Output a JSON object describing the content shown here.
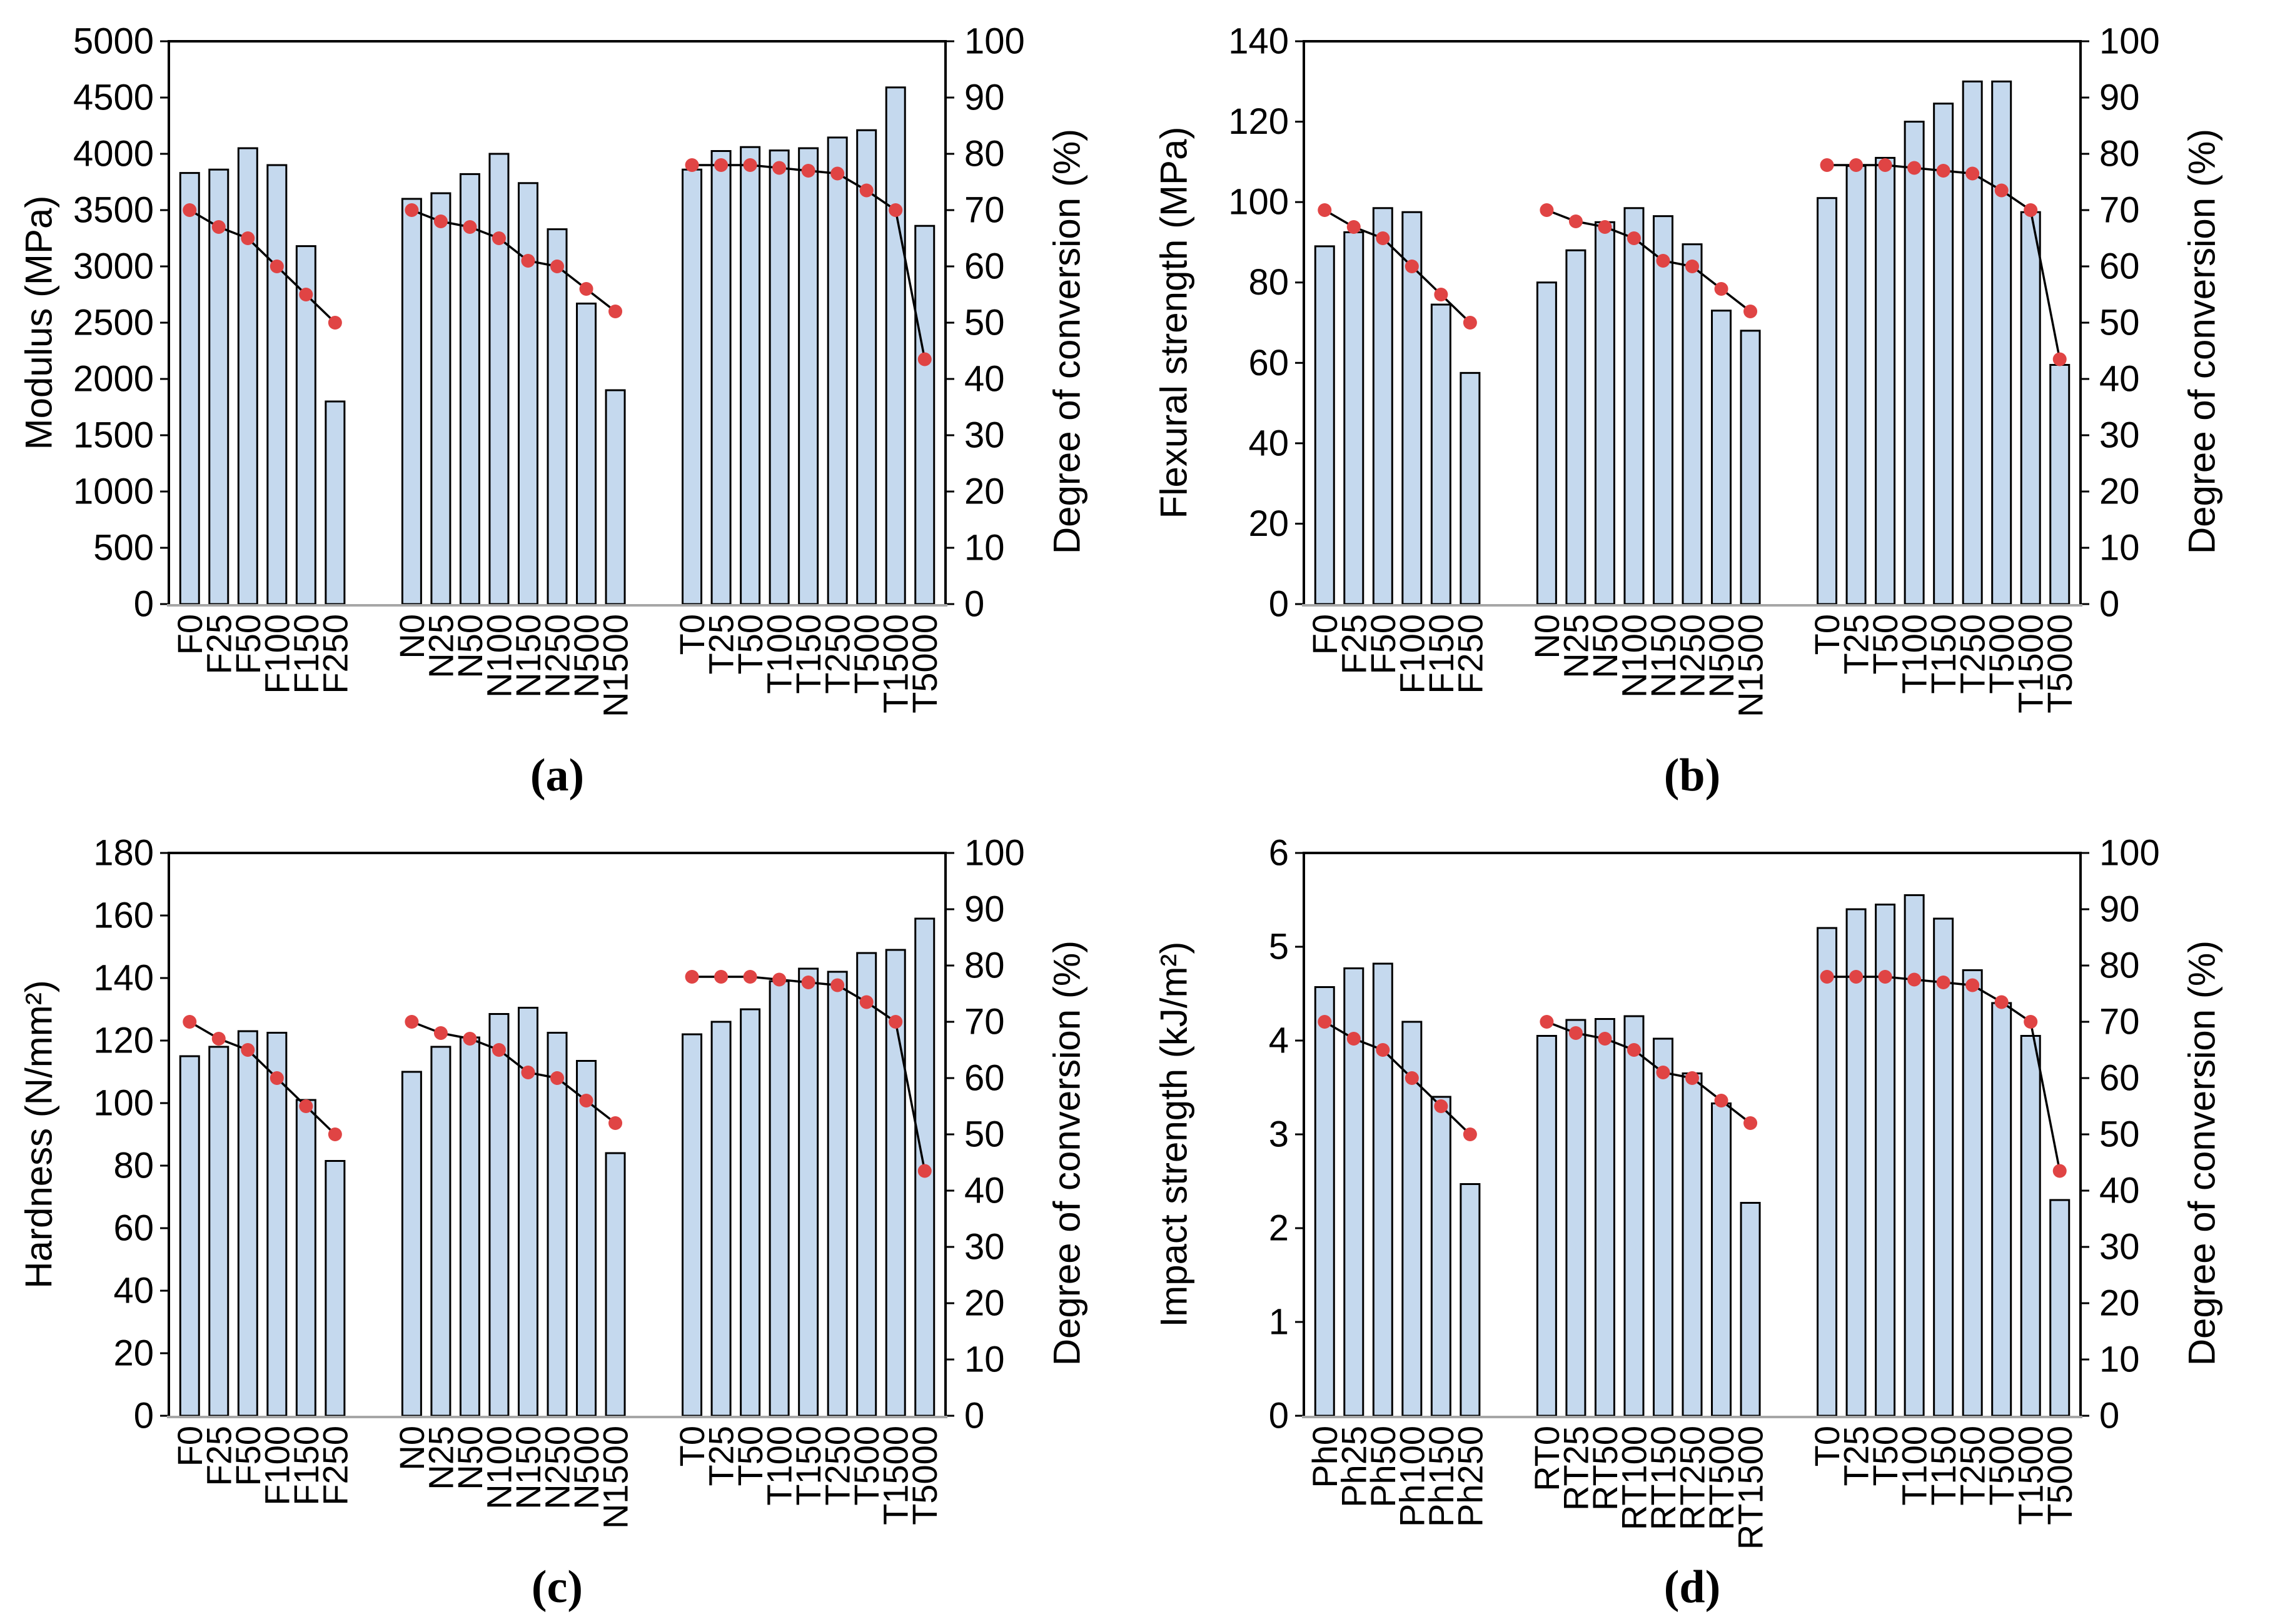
{
  "colors": {
    "background": "#FFFFFF",
    "bar_fill": "#C5D9EE",
    "bar_border": "#000000",
    "line": "#000000",
    "marker": "#E04444",
    "category_axis_line": "#A6A6A6",
    "frame": "#000000",
    "text": "#000000"
  },
  "chart_data": [
    {
      "type": "bar+line",
      "panel_label": "(a)",
      "left_axis": {
        "label": "Modulus (MPa)",
        "min": 0,
        "max": 5000,
        "step": 500
      },
      "right_axis": {
        "label": "Degree of conversion (%)",
        "min": 0,
        "max": 100,
        "step": 10
      },
      "grid": "off",
      "groups": [
        {
          "categories": [
            "F0",
            "F25",
            "F50",
            "F100",
            "F150",
            "F250"
          ],
          "bars": [
            3830,
            3860,
            4050,
            3900,
            3180,
            1800
          ],
          "line": [
            70,
            67,
            65,
            60,
            55,
            50
          ]
        },
        {
          "categories": [
            "N0",
            "N25",
            "N50",
            "N100",
            "N150",
            "N250",
            "N500",
            "N1500"
          ],
          "bars": [
            3600,
            3650,
            3820,
            4000,
            3740,
            3330,
            2670,
            1900
          ],
          "line": [
            70,
            68,
            67,
            65,
            61,
            60,
            56,
            52
          ]
        },
        {
          "categories": [
            "T0",
            "T25",
            "T50",
            "T100",
            "T150",
            "T250",
            "T500",
            "T1500",
            "T5000"
          ],
          "bars": [
            3860,
            4025,
            4060,
            4030,
            4050,
            4145,
            4210,
            4590,
            3360
          ],
          "line": [
            78,
            78,
            78,
            77.5,
            77,
            76.5,
            73.5,
            70,
            43.5
          ]
        }
      ]
    },
    {
      "type": "bar+line",
      "panel_label": "(b)",
      "left_axis": {
        "label": "Flexural strength (MPa)",
        "min": 0,
        "max": 140,
        "step": 20
      },
      "right_axis": {
        "label": "Degree of conversion (%)",
        "min": 0,
        "max": 100,
        "step": 10
      },
      "grid": "off",
      "groups": [
        {
          "categories": [
            "F0",
            "F25",
            "F50",
            "F100",
            "F150",
            "F250"
          ],
          "bars": [
            89,
            92.5,
            98.5,
            97.5,
            74.5,
            57.5
          ],
          "line": [
            70,
            67,
            65,
            60,
            55,
            50
          ]
        },
        {
          "categories": [
            "N0",
            "N25",
            "N50",
            "N100",
            "N150",
            "N250",
            "N500",
            "N1500"
          ],
          "bars": [
            80,
            88,
            95,
            98.5,
            96.5,
            89.5,
            73,
            68
          ],
          "line": [
            70,
            68,
            67,
            65,
            61,
            60,
            56,
            52
          ]
        },
        {
          "categories": [
            "T0",
            "T25",
            "T50",
            "T100",
            "T150",
            "T250",
            "T500",
            "T1500",
            "T5000"
          ],
          "bars": [
            101,
            109,
            111,
            120,
            124.5,
            130,
            130,
            97.5,
            59.5
          ],
          "line": [
            78,
            78,
            78,
            77.5,
            77,
            76.5,
            73.5,
            70,
            43.5
          ]
        }
      ]
    },
    {
      "type": "bar+line",
      "panel_label": "(c)",
      "left_axis": {
        "label": "Hardness (N/mm²)",
        "min": 0,
        "max": 180,
        "step": 20
      },
      "right_axis": {
        "label": "Degree of conversion (%)",
        "min": 0,
        "max": 100,
        "step": 10
      },
      "grid": "off",
      "groups": [
        {
          "categories": [
            "F0",
            "F25",
            "F50",
            "F100",
            "F150",
            "F250"
          ],
          "bars": [
            115,
            118,
            123,
            122.5,
            101,
            81.5
          ],
          "line": [
            70,
            67,
            65,
            60,
            55,
            50
          ]
        },
        {
          "categories": [
            "N0",
            "N25",
            "N50",
            "N100",
            "N150",
            "N250",
            "N500",
            "N1500"
          ],
          "bars": [
            110,
            118,
            121,
            128.5,
            130.5,
            122.5,
            113.5,
            84
          ],
          "line": [
            70,
            68,
            67,
            65,
            61,
            60,
            56,
            52
          ]
        },
        {
          "categories": [
            "T0",
            "T25",
            "T50",
            "T100",
            "T150",
            "T250",
            "T500",
            "T1500",
            "T5000"
          ],
          "bars": [
            122,
            126,
            130,
            139,
            143,
            142,
            148,
            149,
            159
          ],
          "line": [
            78,
            78,
            78,
            77.5,
            77,
            76.5,
            73.5,
            70,
            43.5
          ]
        }
      ]
    },
    {
      "type": "bar+line",
      "panel_label": "(d)",
      "left_axis": {
        "label": "Impact strength (kJ/m²)",
        "min": 0,
        "max": 6,
        "step": 1
      },
      "right_axis": {
        "label": "Degree of conversion (%)",
        "min": 0,
        "max": 100,
        "step": 10
      },
      "grid": "off",
      "groups": [
        {
          "categories": [
            "Ph0",
            "Ph25",
            "Ph50",
            "Ph100",
            "Ph150",
            "Ph250"
          ],
          "bars": [
            4.57,
            4.77,
            4.82,
            4.2,
            3.4,
            2.47
          ],
          "line": [
            70,
            67,
            65,
            60,
            55,
            50
          ]
        },
        {
          "categories": [
            "RT0",
            "RT25",
            "RT50",
            "RT100",
            "RT150",
            "RT250",
            "RT500",
            "RT1500"
          ],
          "bars": [
            4.05,
            4.22,
            4.23,
            4.26,
            4.02,
            3.65,
            3.33,
            2.27
          ],
          "line": [
            70,
            68,
            67,
            65,
            61,
            60,
            56,
            52
          ]
        },
        {
          "categories": [
            "T0",
            "T25",
            "T50",
            "T100",
            "T150",
            "T250",
            "T500",
            "T1500",
            "T5000"
          ],
          "bars": [
            5.2,
            5.4,
            5.45,
            5.55,
            5.3,
            4.75,
            4.4,
            4.05,
            2.3
          ],
          "line": [
            78,
            78,
            78,
            77.5,
            77,
            76.5,
            73.5,
            70,
            43.5
          ]
        }
      ]
    }
  ]
}
